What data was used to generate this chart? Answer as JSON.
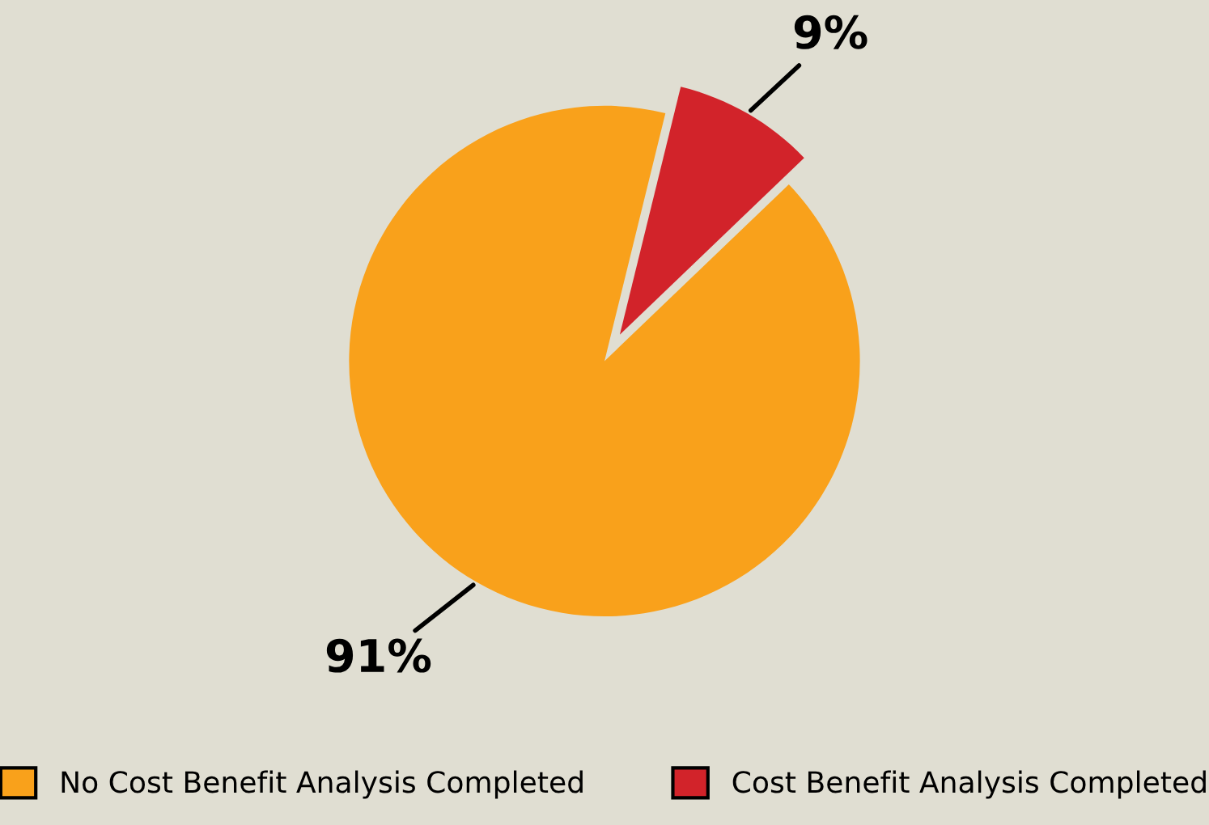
{
  "chart_data": {
    "type": "pie",
    "categories": [
      "No Cost Benefit Analysis Completed",
      "Cost Benefit Analysis Completed"
    ],
    "values": [
      91,
      9
    ],
    "colors": [
      "#f9a11b",
      "#d2232a"
    ],
    "value_labels": [
      "91%",
      "9%"
    ],
    "legend": "bottom"
  }
}
